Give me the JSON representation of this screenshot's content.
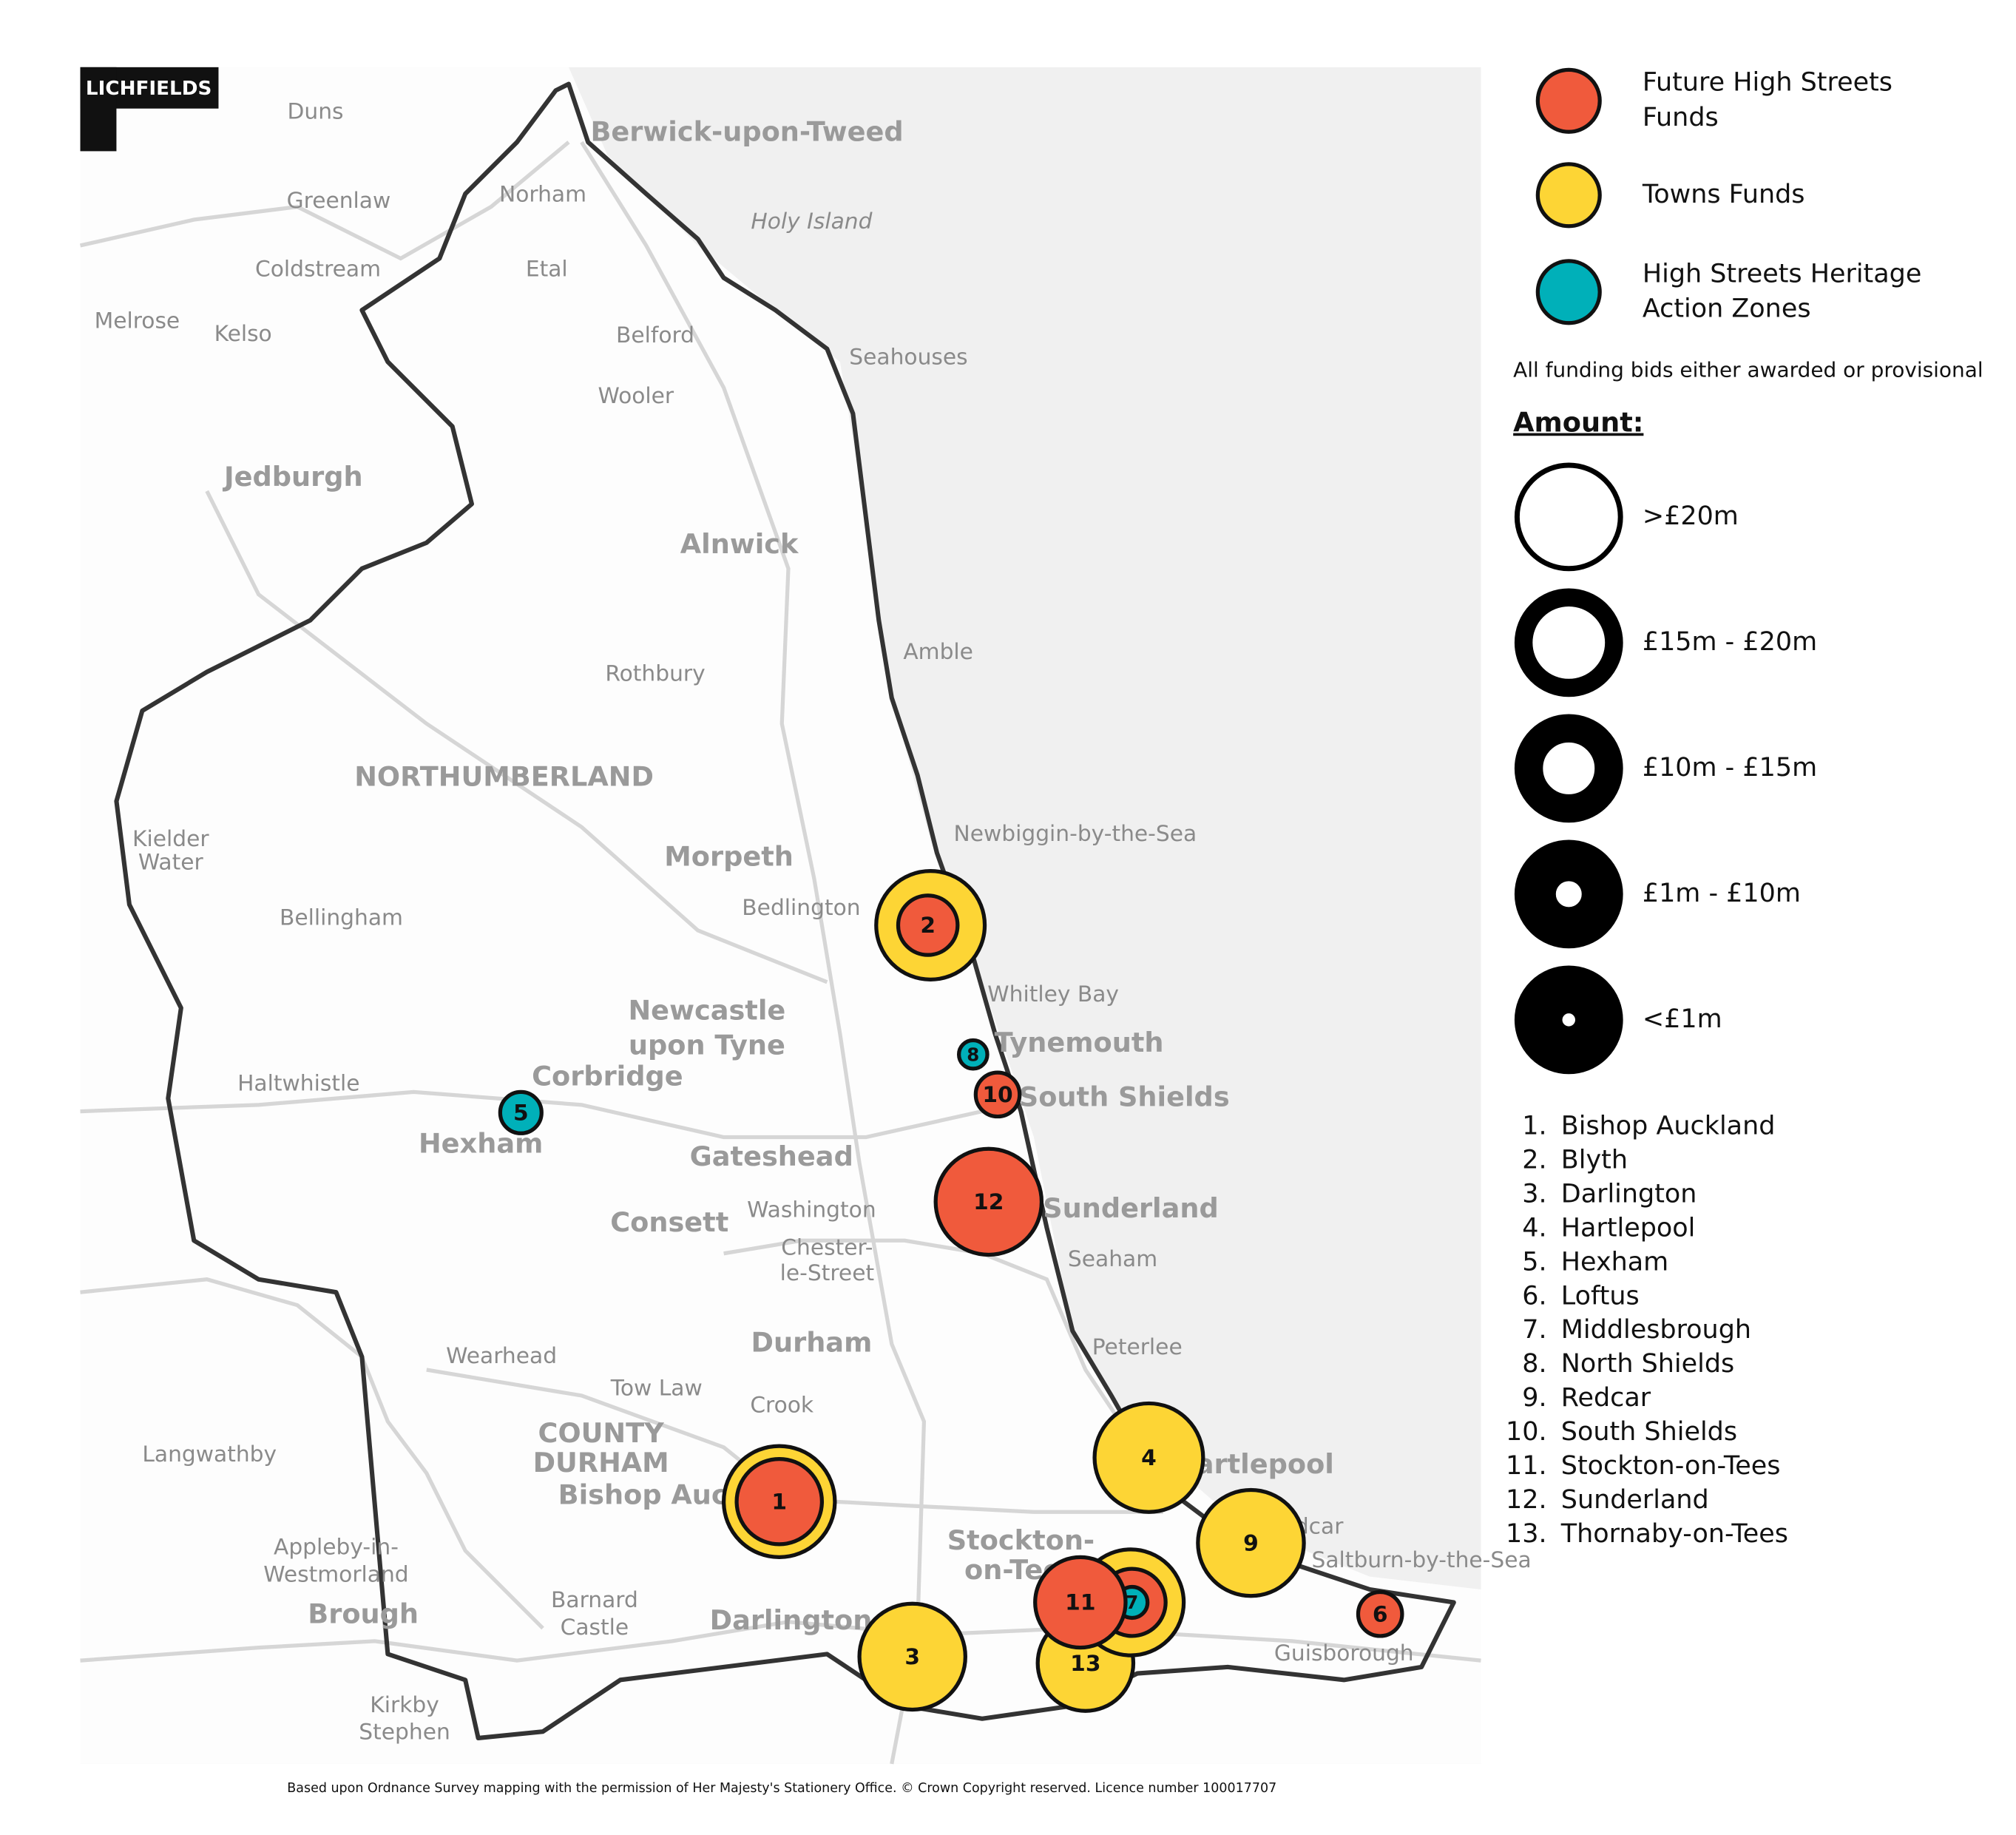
{
  "logo": "LICHFIELDS",
  "credit": "Based upon Ordnance Survey mapping with the permission of Her Majesty's Stationery Office. © Crown Copyright reserved. Licence number 100017707",
  "legend": {
    "funds": [
      {
        "lines": [
          "Future High Streets",
          "Funds"
        ],
        "color": "#f05a3c"
      },
      {
        "lines": [
          "Towns Funds"
        ],
        "color": "#fdd535"
      },
      {
        "lines": [
          "High Streets Heritage",
          "Action Zones"
        ],
        "color": "#00b0b9"
      }
    ],
    "note": "All funding bids either awarded or provisional",
    "amount_title": "Amount:",
    "amounts": [
      ">£20m",
      "£15m - £20m",
      "£10m - £15m",
      "£1m - £10m",
      "<£1m"
    ],
    "list": [
      {
        "number": "1.",
        "name": "Bishop Auckland"
      },
      {
        "number": "2.",
        "name": "Blyth"
      },
      {
        "number": "3.",
        "name": "Darlington"
      },
      {
        "number": "4.",
        "name": "Hartlepool"
      },
      {
        "number": "5.",
        "name": "Hexham"
      },
      {
        "number": "6.",
        "name": "Loftus"
      },
      {
        "number": "7.",
        "name": "Middlesbrough"
      },
      {
        "number": "8.",
        "name": "North Shields"
      },
      {
        "number": "9.",
        "name": "Redcar"
      },
      {
        "number": "10.",
        "name": "South Shields"
      },
      {
        "number": "11.",
        "name": "Stockton-on-Tees"
      },
      {
        "number": "12.",
        "name": "Sunderland"
      },
      {
        "number": "13.",
        "name": "Thornaby-on-Tees"
      }
    ]
  },
  "places": [
    "Berwick-upon-Tweed",
    "Holy Island",
    "Duns",
    "Greenlaw",
    "Norham",
    "Coldstream",
    "Etal",
    "Kelso",
    "Melrose",
    "Belford",
    "Seahouses",
    "Wooler",
    "Jedburgh",
    "Alnwick",
    "Amble",
    "Rothbury",
    "NORTHUMBERLAND",
    "Morpeth",
    "Bedlington",
    "Newbiggin-by-the-Sea",
    "Whitley Bay",
    "Tynemouth",
    "Newcastle",
    "upon Tyne",
    "Corbridge",
    "Haltwhistle",
    "Hexham",
    "South Shields",
    "Gateshead",
    "Consett",
    "Washington",
    "Sunderland",
    "Seaham",
    "Chester-",
    "le-Street",
    "Durham",
    "Peterlee",
    "Wearhead",
    "Tow Law",
    "Crook",
    "COUNTY",
    "DURHAM",
    "Bishop Auckland",
    "Langwathby",
    "Hartlepool",
    "Stockton-",
    "on-Tees",
    "Darlington",
    "Barnard",
    "Castle",
    "Brough",
    "Appleby-in-",
    "Westmorland",
    "Kirkby",
    "Stephen",
    "Guisborough",
    "Saltburn-by-the-Sea",
    "Redcar",
    "Bellingham",
    "Kielder",
    "Water"
  ],
  "markers": [
    {
      "color": "#fdd535"
    },
    {
      "color": "#f05a3c",
      "label": "1"
    },
    {
      "color": "#fdd535"
    },
    {
      "color": "#f05a3c",
      "label": "2"
    },
    {
      "color": "#fdd535",
      "label": "3"
    },
    {
      "color": "#fdd535",
      "label": "4"
    },
    {
      "color": "#00b0b9",
      "label": "5"
    },
    {
      "color": "#f05a3c",
      "label": "6"
    },
    {
      "color": "#fdd535",
      "label": "13"
    },
    {
      "color": "#fdd535"
    },
    {
      "color": "#f05a3c"
    },
    {
      "color": "#00b0b9",
      "label": "7"
    },
    {
      "color": "#f05a3c",
      "label": "11"
    },
    {
      "color": "#00b0b9",
      "label": "8"
    },
    {
      "color": "#fdd535",
      "label": "9"
    },
    {
      "color": "#f05a3c",
      "label": "10"
    },
    {
      "color": "#f05a3c",
      "label": "12"
    }
  ]
}
